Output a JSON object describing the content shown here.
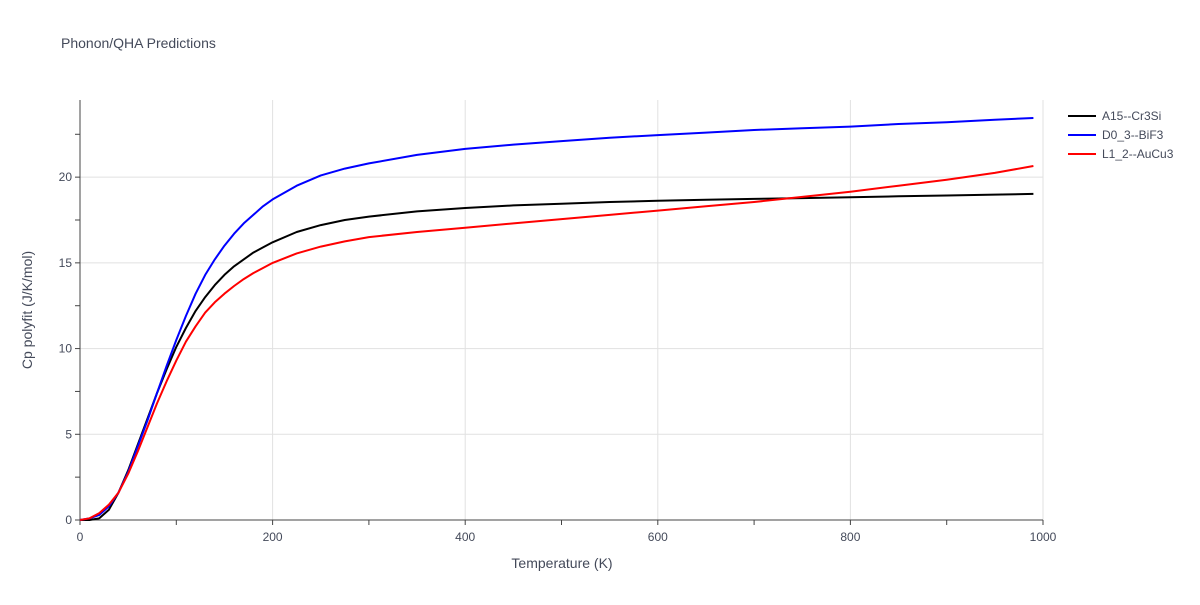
{
  "chart_data": {
    "type": "line",
    "title": "Phonon/QHA Predictions",
    "xlabel": "Temperature (K)",
    "ylabel": "Cp polyfit (J/K/mol)",
    "xlim": [
      0,
      1000
    ],
    "ylim": [
      0,
      24.5
    ],
    "xticks": [
      0,
      200,
      400,
      600,
      800,
      1000
    ],
    "yticks": [
      0,
      5,
      10,
      15,
      20
    ],
    "xtick_labels": [
      "0",
      "200",
      "400",
      "600",
      "800",
      "1000"
    ],
    "ytick_labels": [
      "0",
      "5",
      "10",
      "15",
      "20"
    ],
    "grid": true,
    "legend_position": "top-right",
    "series": [
      {
        "name": "A15--Cr3Si",
        "color": "#000000",
        "x": [
          0,
          10,
          20,
          30,
          40,
          50,
          60,
          70,
          80,
          90,
          100,
          110,
          120,
          130,
          140,
          150,
          160,
          170,
          180,
          190,
          200,
          225,
          250,
          275,
          300,
          350,
          400,
          450,
          500,
          550,
          600,
          650,
          700,
          750,
          800,
          850,
          900,
          950,
          990
        ],
        "y": [
          0,
          0,
          0.1,
          0.6,
          1.6,
          2.9,
          4.4,
          5.9,
          7.4,
          8.8,
          10.1,
          11.2,
          12.2,
          13.0,
          13.7,
          14.3,
          14.8,
          15.2,
          15.6,
          15.9,
          16.2,
          16.8,
          17.2,
          17.5,
          17.7,
          18.0,
          18.2,
          18.35,
          18.45,
          18.55,
          18.62,
          18.68,
          18.73,
          18.78,
          18.83,
          18.88,
          18.93,
          18.98,
          19.02
        ]
      },
      {
        "name": "D0_3--BiF3",
        "color": "#0000ff",
        "x": [
          0,
          10,
          20,
          30,
          40,
          50,
          60,
          70,
          80,
          90,
          100,
          110,
          120,
          130,
          140,
          150,
          160,
          170,
          180,
          190,
          200,
          225,
          250,
          275,
          300,
          350,
          400,
          450,
          500,
          550,
          600,
          650,
          700,
          750,
          800,
          850,
          900,
          950,
          990
        ],
        "y": [
          0,
          0.1,
          0.3,
          0.8,
          1.6,
          2.8,
          4.3,
          5.8,
          7.4,
          9.0,
          10.5,
          11.9,
          13.2,
          14.3,
          15.2,
          16.0,
          16.7,
          17.3,
          17.8,
          18.3,
          18.7,
          19.5,
          20.1,
          20.5,
          20.8,
          21.3,
          21.65,
          21.9,
          22.1,
          22.3,
          22.45,
          22.6,
          22.75,
          22.85,
          22.95,
          23.1,
          23.2,
          23.35,
          23.45
        ]
      },
      {
        "name": "L1_2--AuCu3",
        "color": "#ff0000",
        "x": [
          0,
          10,
          20,
          30,
          40,
          50,
          60,
          70,
          80,
          90,
          100,
          110,
          120,
          130,
          140,
          150,
          160,
          170,
          180,
          190,
          200,
          225,
          250,
          275,
          300,
          350,
          400,
          450,
          500,
          550,
          600,
          650,
          700,
          750,
          800,
          850,
          900,
          950,
          990
        ],
        "y": [
          0,
          0.1,
          0.4,
          0.9,
          1.6,
          2.7,
          4.0,
          5.4,
          6.8,
          8.1,
          9.3,
          10.4,
          11.3,
          12.1,
          12.7,
          13.2,
          13.65,
          14.05,
          14.4,
          14.7,
          15.0,
          15.55,
          15.95,
          16.25,
          16.5,
          16.8,
          17.05,
          17.3,
          17.55,
          17.8,
          18.05,
          18.3,
          18.55,
          18.85,
          19.15,
          19.5,
          19.85,
          20.25,
          20.65
        ]
      }
    ]
  }
}
